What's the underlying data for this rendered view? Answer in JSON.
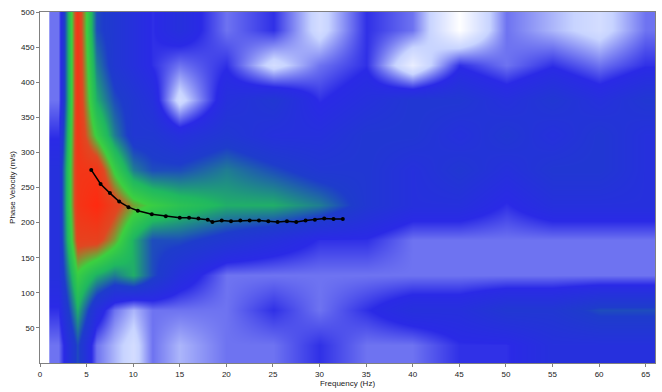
{
  "chart_data": {
    "type": "heatmap",
    "x_label": "Frequency (Hz)",
    "y_label": "Phase Velocity (m/s)",
    "xlim": [
      0,
      66
    ],
    "ylim": [
      0,
      500
    ],
    "xticks": [
      0,
      5,
      10,
      15,
      20,
      25,
      30,
      35,
      40,
      45,
      50,
      55,
      60,
      65
    ],
    "yticks": [
      50,
      100,
      150,
      200,
      250,
      300,
      350,
      400,
      450,
      500
    ],
    "grid": false,
    "heatmap": {
      "x": [
        2,
        4,
        6,
        8,
        10,
        12,
        15,
        20,
        25,
        30,
        35,
        40,
        45,
        50,
        55,
        60,
        65
      ],
      "y": [
        25,
        75,
        125,
        175,
        225,
        275,
        325,
        375,
        425,
        475
      ],
      "z": [
        [
          0.3,
          0.5,
          0.3,
          0.25,
          0.2,
          0.3,
          0.25,
          0.3,
          0.3,
          0.35,
          0.3,
          0.3,
          0.35,
          0.35,
          0.4,
          0.4,
          0.4
        ],
        [
          0.35,
          0.6,
          0.4,
          0.3,
          0.25,
          0.3,
          0.3,
          0.3,
          0.35,
          0.3,
          0.35,
          0.4,
          0.4,
          0.45,
          0.45,
          0.5,
          0.5
        ],
        [
          0.4,
          0.7,
          0.6,
          0.55,
          0.6,
          0.5,
          0.4,
          0.3,
          0.3,
          0.3,
          0.3,
          0.3,
          0.3,
          0.3,
          0.3,
          0.3,
          0.3
        ],
        [
          0.4,
          0.85,
          0.85,
          0.75,
          0.6,
          0.5,
          0.5,
          0.45,
          0.4,
          0.35,
          0.35,
          0.3,
          0.3,
          0.3,
          0.3,
          0.3,
          0.3
        ],
        [
          0.4,
          0.9,
          0.95,
          0.85,
          0.75,
          0.7,
          0.65,
          0.6,
          0.6,
          0.55,
          0.45,
          0.4,
          0.4,
          0.35,
          0.4,
          0.4,
          0.4
        ],
        [
          0.4,
          0.9,
          0.9,
          0.7,
          0.55,
          0.5,
          0.5,
          0.55,
          0.5,
          0.45,
          0.45,
          0.4,
          0.45,
          0.4,
          0.45,
          0.45,
          0.4
        ],
        [
          0.35,
          0.9,
          0.7,
          0.55,
          0.45,
          0.45,
          0.4,
          0.45,
          0.4,
          0.4,
          0.45,
          0.45,
          0.4,
          0.45,
          0.4,
          0.45,
          0.4
        ],
        [
          0.3,
          0.9,
          0.6,
          0.5,
          0.45,
          0.4,
          0.2,
          0.4,
          0.45,
          0.35,
          0.4,
          0.45,
          0.45,
          0.4,
          0.45,
          0.4,
          0.45
        ],
        [
          0.3,
          0.9,
          0.55,
          0.45,
          0.4,
          0.35,
          0.3,
          0.35,
          0.2,
          0.3,
          0.35,
          0.15,
          0.35,
          0.3,
          0.35,
          0.3,
          0.35
        ],
        [
          0.3,
          0.9,
          0.5,
          0.45,
          0.4,
          0.35,
          0.4,
          0.3,
          0.35,
          0.2,
          0.35,
          0.3,
          0.1,
          0.3,
          0.25,
          0.2,
          0.3
        ]
      ]
    },
    "series": [
      {
        "type": "line",
        "color": "#000000",
        "marker": "circle",
        "line_style": "solid",
        "x": [
          5.5,
          6.5,
          7.5,
          8.5,
          9.5,
          10.5,
          12,
          13.5,
          15,
          16,
          17,
          18,
          18.5,
          19.5,
          20.5,
          21.5,
          22.5,
          23.5,
          24.5,
          25.5,
          26.5,
          27.5,
          28.5,
          29.5,
          30.5,
          31.5,
          32.5
        ],
        "values": [
          275,
          255,
          242,
          230,
          222,
          217,
          212,
          209,
          207,
          207,
          206,
          204,
          201,
          203,
          202,
          203,
          203,
          203,
          202,
          201,
          202,
          201,
          203,
          204,
          206,
          205,
          205
        ]
      }
    ]
  }
}
